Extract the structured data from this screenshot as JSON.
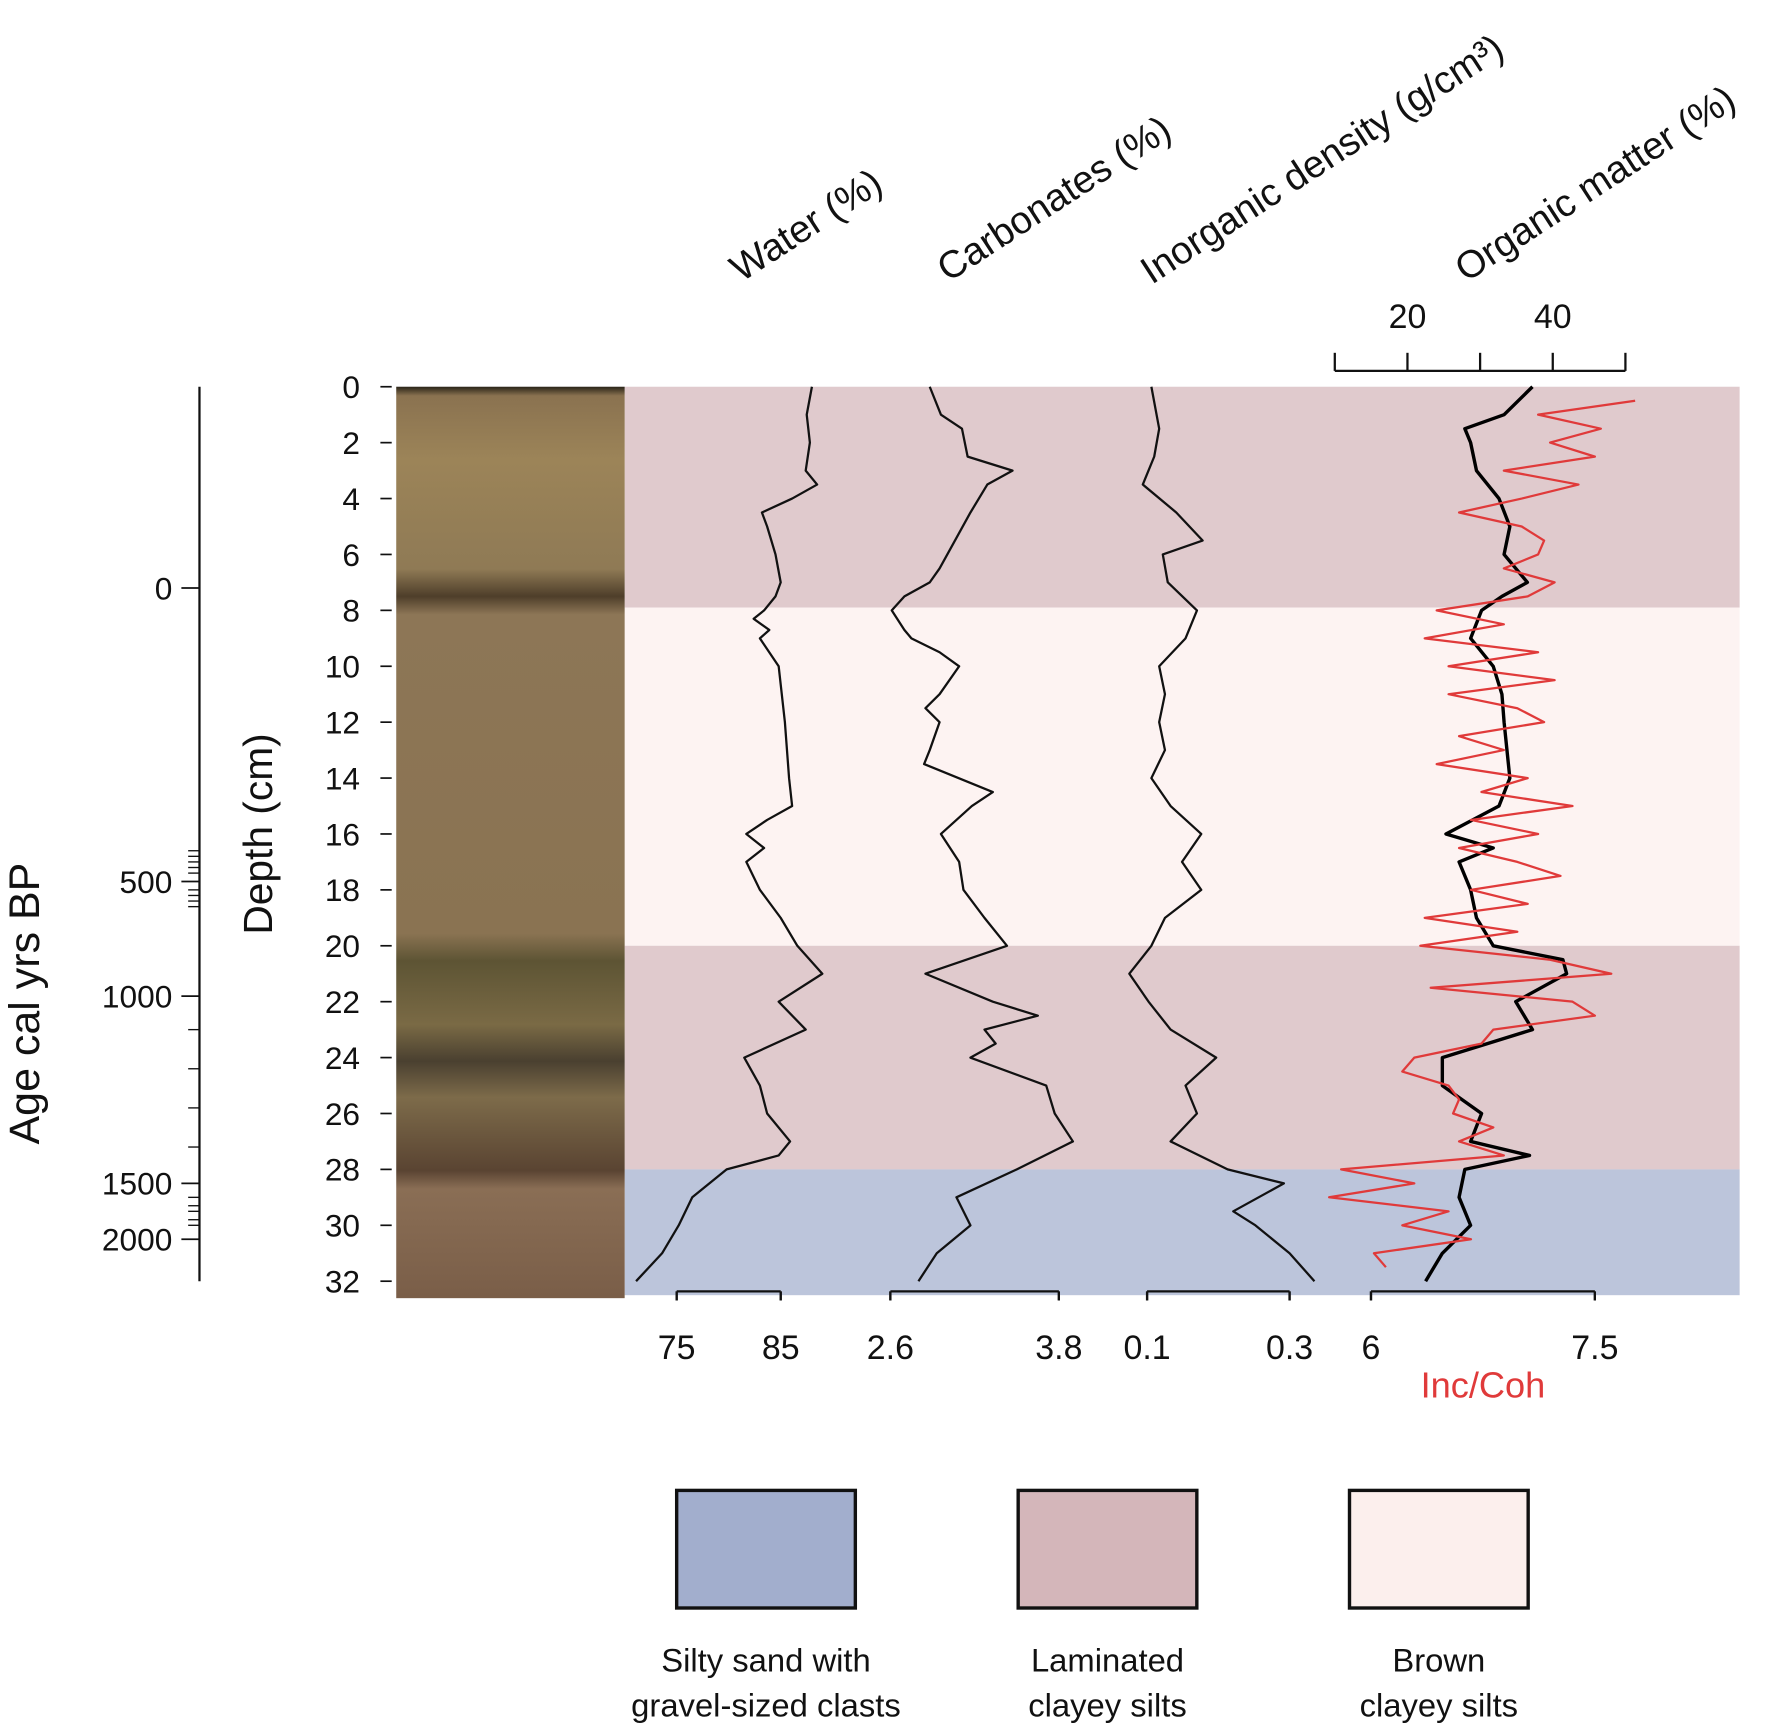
{
  "chart_data": {
    "type": "core-log",
    "depth_axis": {
      "label": "Depth (cm)",
      "lim": [
        0,
        32
      ],
      "ticks": [
        0,
        2,
        4,
        6,
        8,
        10,
        12,
        14,
        16,
        18,
        20,
        22,
        24,
        26,
        28,
        30,
        32
      ]
    },
    "age_axis": {
      "label": "Age cal yrs BP",
      "ticks": [
        {
          "value": 0,
          "depth": 7.2
        },
        {
          "value": 500,
          "depth": 17.7
        },
        {
          "value": 1000,
          "depth": 21.8
        },
        {
          "value": 1500,
          "depth": 28.5
        },
        {
          "value": 2000,
          "depth": 30.5
        }
      ],
      "minor_tick_depths": [
        16.6,
        16.8,
        17.0,
        17.2,
        17.4,
        18.0,
        18.2,
        18.4,
        18.6,
        23.0,
        24.4,
        25.8,
        27.2,
        29.0,
        29.3,
        29.5,
        29.8,
        30.0
      ]
    },
    "panels": [
      {
        "title": "Water (%)",
        "color": "#111111",
        "axis": "bottom",
        "xlim": [
          75,
          85
        ],
        "xticks": [
          75,
          85
        ],
        "depths": [
          0,
          1,
          2,
          3,
          3.5,
          4,
          4.5,
          5,
          6,
          7,
          7.5,
          8,
          8.3,
          8.7,
          9,
          10,
          12,
          14,
          15,
          15.5,
          16,
          16.5,
          17,
          18,
          19,
          20,
          21,
          22,
          23,
          24,
          25,
          26,
          27,
          27.5,
          28,
          29,
          30,
          31,
          32
        ],
        "values": [
          88.0,
          87.5,
          87.8,
          87.4,
          88.5,
          86.1,
          83.2,
          83.7,
          84.5,
          85.0,
          84.5,
          83.4,
          82.4,
          83.9,
          83.0,
          84.8,
          85.4,
          85.8,
          86.1,
          83.7,
          81.7,
          83.4,
          81.7,
          83.0,
          85.0,
          86.6,
          89.0,
          84.8,
          87.4,
          81.5,
          83.0,
          83.7,
          85.9,
          84.8,
          79.8,
          76.5,
          75.2,
          73.6,
          71.1
        ]
      },
      {
        "title": "Carbonates (%)",
        "color": "#111111",
        "axis": "bottom",
        "xlim": [
          2.6,
          3.8
        ],
        "xticks": [
          2.6,
          3.8
        ],
        "depths": [
          0,
          1,
          1.5,
          2.5,
          3,
          3.5,
          4.5,
          5.5,
          6.5,
          7,
          7.5,
          8,
          8.7,
          9,
          9.5,
          10,
          11,
          11.5,
          12,
          13,
          13.5,
          14.5,
          15,
          16,
          17,
          18,
          19,
          20,
          21,
          22,
          22.5,
          23,
          23.5,
          24,
          25,
          26,
          27,
          28,
          29,
          30,
          31,
          32
        ],
        "values": [
          2.88,
          2.96,
          3.11,
          3.15,
          3.47,
          3.29,
          3.17,
          3.06,
          2.95,
          2.88,
          2.7,
          2.61,
          2.7,
          2.75,
          2.95,
          3.09,
          2.95,
          2.85,
          2.95,
          2.88,
          2.84,
          3.33,
          3.18,
          2.96,
          3.09,
          3.12,
          3.27,
          3.43,
          2.85,
          3.33,
          3.65,
          3.27,
          3.35,
          3.17,
          3.71,
          3.77,
          3.9,
          3.5,
          3.07,
          3.17,
          2.93,
          2.8
        ]
      },
      {
        "title": "Inorganic density (g/cm³)",
        "color": "#111111",
        "axis": "bottom",
        "xlim": [
          0.1,
          0.3
        ],
        "xticks": [
          0.1,
          0.3
        ],
        "depths": [
          0,
          1.5,
          2.5,
          3.5,
          4.5,
          5.5,
          6,
          7,
          8,
          9,
          10,
          11,
          12,
          13,
          14,
          15,
          16,
          17,
          18,
          19,
          20,
          21,
          22,
          23,
          24,
          25,
          26,
          27,
          28,
          28.5,
          29.5,
          30,
          31,
          32
        ],
        "values": [
          0.106,
          0.117,
          0.11,
          0.094,
          0.141,
          0.178,
          0.122,
          0.129,
          0.17,
          0.154,
          0.117,
          0.125,
          0.117,
          0.125,
          0.106,
          0.133,
          0.176,
          0.149,
          0.176,
          0.125,
          0.106,
          0.075,
          0.102,
          0.133,
          0.197,
          0.154,
          0.17,
          0.133,
          0.213,
          0.292,
          0.221,
          0.252,
          0.3,
          0.335
        ]
      },
      {
        "title": "Organic matter (%)",
        "color": "#000000",
        "axis": "top",
        "xlim": [
          10,
          50
        ],
        "xticks": [
          20,
          40
        ],
        "minor_ticks": [
          30
        ],
        "depths": [
          0,
          1,
          1.5,
          2,
          3,
          4,
          5,
          6,
          7,
          7.5,
          8,
          9,
          10,
          11,
          12,
          14,
          15,
          16,
          16.5,
          17,
          18,
          19,
          20,
          20.5,
          21,
          22,
          23,
          24,
          25,
          26,
          27,
          27.5,
          28,
          29,
          30,
          31,
          32
        ],
        "values": [
          37.2,
          33.3,
          27.9,
          28.7,
          29.5,
          32.6,
          34.1,
          33.3,
          36.5,
          33.0,
          30.2,
          28.7,
          31.8,
          33.0,
          33.3,
          34.1,
          32.6,
          25.3,
          31.8,
          27.1,
          28.7,
          29.5,
          31.8,
          41.4,
          41.9,
          34.9,
          37.2,
          24.8,
          24.8,
          30.2,
          28.7,
          36.8,
          27.9,
          27.1,
          28.7,
          24.8,
          22.5
        ]
      },
      {
        "axis_label": "Inc/Coh",
        "color": "#e03a3a",
        "axis": "bottom",
        "xlim": [
          6,
          7.5
        ],
        "xticks": [
          6,
          7.5
        ],
        "depths": [
          0.5,
          1,
          1.5,
          2,
          2.5,
          3,
          3.5,
          4,
          4.5,
          5,
          5.5,
          6,
          6.5,
          7,
          7.5,
          8,
          8.5,
          9,
          9.5,
          10,
          10.5,
          11,
          11.5,
          12,
          12.5,
          13,
          13.5,
          14,
          14.5,
          15,
          15.5,
          16,
          16.5,
          17,
          17.5,
          18,
          18.5,
          19,
          19.5,
          20,
          20.5,
          21,
          21.5,
          22,
          22.5,
          23,
          23.5,
          24,
          24.5,
          25,
          25.5,
          26,
          26.5,
          27,
          27.5,
          28,
          28.5,
          29,
          29.5,
          30,
          30.5,
          31,
          31.5
        ],
        "values": [
          7.77,
          7.12,
          7.54,
          7.2,
          7.5,
          6.89,
          7.39,
          7.01,
          6.59,
          7.01,
          7.16,
          7.12,
          6.89,
          7.23,
          7.05,
          6.44,
          6.89,
          6.36,
          7.12,
          6.52,
          7.23,
          6.52,
          6.98,
          7.16,
          6.59,
          6.89,
          6.44,
          7.05,
          6.74,
          7.35,
          6.67,
          7.12,
          6.59,
          6.98,
          7.27,
          6.67,
          7.05,
          6.36,
          6.98,
          6.33,
          7.2,
          7.61,
          6.4,
          7.35,
          7.5,
          6.82,
          6.74,
          6.29,
          6.21,
          6.52,
          6.59,
          6.55,
          6.82,
          6.59,
          6.89,
          5.8,
          6.29,
          5.72,
          6.52,
          6.21,
          6.67,
          6.02,
          6.1
        ]
      }
    ],
    "facies": [
      {
        "label": [
          "Silty sand with",
          "gravel-sized clasts"
        ],
        "color": "#a2aecd"
      },
      {
        "label": [
          "Laminated",
          "clayey silts"
        ],
        "color": "#d4b6ba"
      },
      {
        "label": [
          "Brown",
          "clayey silts"
        ],
        "color": "#fcefed"
      }
    ],
    "units": [
      {
        "facies": 1,
        "top": 0,
        "bottom": 7.9
      },
      {
        "facies": 2,
        "top": 7.9,
        "bottom": 20
      },
      {
        "facies": 1,
        "top": 20,
        "bottom": 28
      },
      {
        "facies": 0,
        "top": 28,
        "bottom": 32.5
      }
    ]
  }
}
